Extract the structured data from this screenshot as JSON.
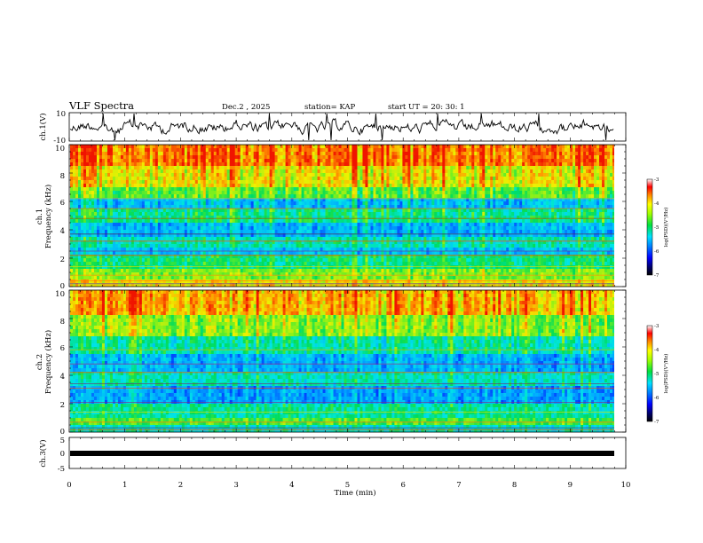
{
  "header": {
    "title": "VLF Spectra",
    "date": "Dec.2 , 2025",
    "station": "station= KAP",
    "start_time": "start UT = 20: 30: 1"
  },
  "chart_data": [
    {
      "type": "line",
      "name": "ch1-voltage",
      "ylabel": "ch.1(V)",
      "ylim": [
        -10,
        10
      ],
      "yticks": [
        "10",
        "-10"
      ],
      "xlim": [
        0,
        10
      ]
    },
    {
      "type": "heatmap",
      "name": "ch1-spectrogram",
      "ylabel_line1": "ch.1",
      "ylabel_line2": "Frequency (kHz)",
      "ylim": [
        0,
        10
      ],
      "yticks": [
        "0",
        "2",
        "4",
        "6",
        "8",
        "10"
      ],
      "xlim": [
        0,
        10
      ],
      "colorbar": {
        "label": "log(PSD)(V²/Hz)",
        "range": [
          -7,
          -3
        ],
        "ticks": [
          "-3",
          "-4",
          "-5",
          "-6",
          "-7"
        ]
      }
    },
    {
      "type": "heatmap",
      "name": "ch2-spectrogram",
      "ylabel_line1": "ch.2",
      "ylabel_line2": "Frequency (kHz)",
      "ylim": [
        0,
        10
      ],
      "yticks": [
        "0",
        "2",
        "4",
        "6",
        "8",
        "10"
      ],
      "xlim": [
        0,
        10
      ],
      "colorbar": {
        "label": "log(PSD)(V²/Hz)",
        "range": [
          -7,
          -3
        ],
        "ticks": [
          "-3",
          "-4",
          "-5",
          "-6",
          "-7"
        ]
      }
    },
    {
      "type": "line",
      "name": "ch3-voltage",
      "ylabel": "ch.3(V)",
      "ylim": [
        -5,
        5
      ],
      "yticks": [
        "5",
        "0",
        "-5"
      ],
      "xlim": [
        0,
        10
      ],
      "xticks": [
        "0",
        "1",
        "2",
        "3",
        "4",
        "5",
        "6",
        "7",
        "8",
        "9",
        "10"
      ],
      "xlabel": "Time (min)"
    }
  ]
}
